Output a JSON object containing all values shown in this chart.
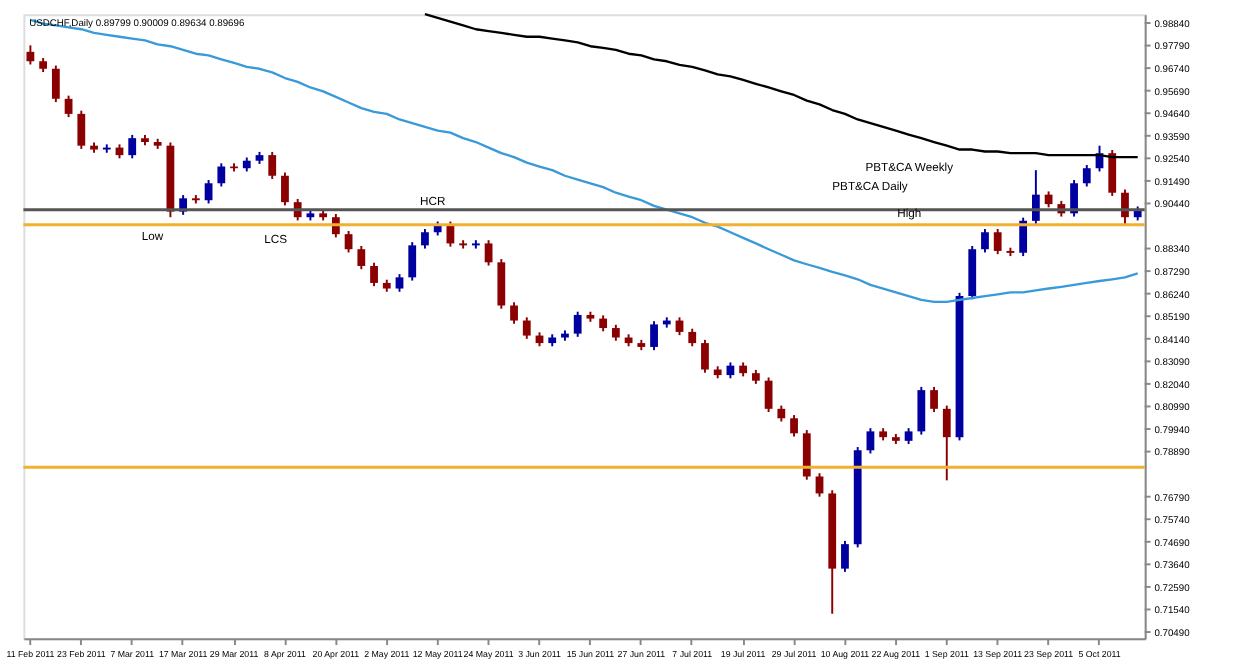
{
  "chart_data": {
    "type": "candlestick",
    "title": "USDCHF,Daily  0.89799 0.90009 0.89634 0.89696",
    "categories": [
      "11 Feb 2011",
      null,
      null,
      null,
      "23 Feb 2011",
      null,
      null,
      null,
      "7 Mar 2011",
      null,
      null,
      null,
      "17 Mar 2011",
      null,
      null,
      null,
      "29 Mar 2011",
      null,
      null,
      null,
      "8 Apr 2011",
      null,
      null,
      null,
      "20 Apr 2011",
      null,
      null,
      null,
      "2 May 2011",
      null,
      null,
      null,
      "12 May 2011",
      null,
      null,
      null,
      "24 May 2011",
      null,
      null,
      null,
      "3 Jun 2011",
      null,
      null,
      null,
      "15 Jun 2011",
      null,
      null,
      null,
      "27 Jun 2011",
      null,
      null,
      null,
      "7 Jul 2011",
      null,
      null,
      null,
      "19 Jul 2011",
      null,
      null,
      null,
      "29 Jul 2011",
      null,
      null,
      null,
      "10 Aug 2011",
      null,
      null,
      null,
      "22 Aug 2011",
      null,
      null,
      null,
      "1 Sep 2011",
      null,
      null,
      null,
      "13 Sep 2011",
      null,
      null,
      null,
      "23 Sep 2011",
      null,
      null,
      null,
      "5 Oct 2011",
      null,
      null,
      null
    ],
    "ohlc": [
      [
        0.975,
        0.978,
        0.9691,
        0.9706
      ],
      [
        0.9706,
        0.9721,
        0.9656,
        0.9671
      ],
      [
        0.9671,
        0.9686,
        0.9516,
        0.9531
      ],
      [
        0.9531,
        0.9546,
        0.9446,
        0.9461
      ],
      [
        0.9461,
        0.9476,
        0.9298,
        0.9313
      ],
      [
        0.9313,
        0.9328,
        0.928,
        0.9295
      ],
      [
        0.9295,
        0.9319,
        0.928,
        0.9304
      ],
      [
        0.9304,
        0.9319,
        0.9254,
        0.9269
      ],
      [
        0.9269,
        0.9363,
        0.9254,
        0.9348
      ],
      [
        0.9348,
        0.9363,
        0.9315,
        0.933
      ],
      [
        0.933,
        0.9345,
        0.9298,
        0.9313
      ],
      [
        0.9313,
        0.9328,
        0.898,
        0.9006
      ],
      [
        0.9006,
        0.9083,
        0.8991,
        0.9068
      ],
      [
        0.9068,
        0.9083,
        0.9044,
        0.9059
      ],
      [
        0.9059,
        0.9153,
        0.9044,
        0.9138
      ],
      [
        0.9138,
        0.9231,
        0.9123,
        0.9216
      ],
      [
        0.9216,
        0.9231,
        0.9193,
        0.9208
      ],
      [
        0.9208,
        0.9258,
        0.9193,
        0.9243
      ],
      [
        0.9243,
        0.9284,
        0.9228,
        0.9269
      ],
      [
        0.9269,
        0.9284,
        0.9158,
        0.9173
      ],
      [
        0.9173,
        0.9188,
        0.9035,
        0.905
      ],
      [
        0.905,
        0.9065,
        0.8965,
        0.898
      ],
      [
        0.898,
        0.9013,
        0.8965,
        0.8998
      ],
      [
        0.8998,
        0.9013,
        0.8965,
        0.898
      ],
      [
        0.898,
        0.8995,
        0.8886,
        0.8901
      ],
      [
        0.8901,
        0.8916,
        0.8816,
        0.8831
      ],
      [
        0.8831,
        0.8846,
        0.8738,
        0.8753
      ],
      [
        0.8753,
        0.8768,
        0.8659,
        0.8674
      ],
      [
        0.8674,
        0.8689,
        0.8633,
        0.8648
      ],
      [
        0.8648,
        0.8715,
        0.8633,
        0.87
      ],
      [
        0.87,
        0.8864,
        0.8685,
        0.8849
      ],
      [
        0.8849,
        0.8925,
        0.8834,
        0.891
      ],
      [
        0.891,
        0.896,
        0.8895,
        0.8945
      ],
      [
        0.8945,
        0.896,
        0.8843,
        0.8858
      ],
      [
        0.8858,
        0.8873,
        0.8834,
        0.8849
      ],
      [
        0.8849,
        0.8873,
        0.8834,
        0.8858
      ],
      [
        0.8858,
        0.8873,
        0.8755,
        0.877
      ],
      [
        0.877,
        0.8785,
        0.8554,
        0.8569
      ],
      [
        0.8569,
        0.8584,
        0.8484,
        0.8499
      ],
      [
        0.8499,
        0.8514,
        0.8414,
        0.8429
      ],
      [
        0.8429,
        0.8444,
        0.8379,
        0.8394
      ],
      [
        0.8394,
        0.8435,
        0.8379,
        0.842
      ],
      [
        0.842,
        0.8453,
        0.8405,
        0.8438
      ],
      [
        0.8438,
        0.854,
        0.8423,
        0.8525
      ],
      [
        0.8525,
        0.854,
        0.8493,
        0.8508
      ],
      [
        0.8508,
        0.8523,
        0.8449,
        0.8464
      ],
      [
        0.8464,
        0.8479,
        0.8405,
        0.842
      ],
      [
        0.842,
        0.8435,
        0.8379,
        0.8394
      ],
      [
        0.8394,
        0.8409,
        0.8361,
        0.8376
      ],
      [
        0.8376,
        0.8496,
        0.8361,
        0.8481
      ],
      [
        0.8481,
        0.8514,
        0.8466,
        0.8499
      ],
      [
        0.8499,
        0.8514,
        0.8431,
        0.8446
      ],
      [
        0.8446,
        0.8461,
        0.8379,
        0.8394
      ],
      [
        0.8394,
        0.8409,
        0.8256,
        0.8271
      ],
      [
        0.8271,
        0.8286,
        0.823,
        0.8245
      ],
      [
        0.8245,
        0.8304,
        0.823,
        0.8289
      ],
      [
        0.8289,
        0.8304,
        0.8239,
        0.8254
      ],
      [
        0.8254,
        0.8269,
        0.8204,
        0.8219
      ],
      [
        0.8219,
        0.8234,
        0.8073,
        0.8088
      ],
      [
        0.8088,
        0.8103,
        0.8029,
        0.8044
      ],
      [
        0.8044,
        0.8059,
        0.7959,
        0.7974
      ],
      [
        0.7974,
        0.7989,
        0.7758,
        0.7773
      ],
      [
        0.7773,
        0.7788,
        0.7679,
        0.7694
      ],
      [
        0.7694,
        0.7709,
        0.7134,
        0.7344
      ],
      [
        0.7344,
        0.7473,
        0.7329,
        0.7458
      ],
      [
        0.7458,
        0.791,
        0.7443,
        0.7895
      ],
      [
        0.7895,
        0.7998,
        0.788,
        0.7983
      ],
      [
        0.7983,
        0.7998,
        0.7941,
        0.7956
      ],
      [
        0.7956,
        0.7971,
        0.7924,
        0.7939
      ],
      [
        0.7939,
        0.7998,
        0.7924,
        0.7983
      ],
      [
        0.7983,
        0.819,
        0.7968,
        0.8175
      ],
      [
        0.8175,
        0.819,
        0.8073,
        0.8088
      ],
      [
        0.8088,
        0.8103,
        0.7755,
        0.7956
      ],
      [
        0.7956,
        0.8628,
        0.7941,
        0.8613
      ],
      [
        0.8613,
        0.8846,
        0.8598,
        0.8831
      ],
      [
        0.8831,
        0.8925,
        0.8816,
        0.891
      ],
      [
        0.891,
        0.8925,
        0.8808,
        0.8823
      ],
      [
        0.8823,
        0.8838,
        0.8799,
        0.8814
      ],
      [
        0.8814,
        0.8978,
        0.8799,
        0.8963
      ],
      [
        0.8963,
        0.9199,
        0.8948,
        0.9085
      ],
      [
        0.9085,
        0.91,
        0.9026,
        0.9041
      ],
      [
        0.9041,
        0.9056,
        0.8983,
        0.8998
      ],
      [
        0.8998,
        0.9153,
        0.8983,
        0.9138
      ],
      [
        0.9138,
        0.9223,
        0.9123,
        0.9208
      ],
      [
        0.9208,
        0.9313,
        0.9193,
        0.9278
      ],
      [
        0.9278,
        0.9293,
        0.9079,
        0.9094
      ],
      [
        0.9094,
        0.9109,
        0.8945,
        0.898
      ],
      [
        0.898,
        0.903,
        0.8965,
        0.9015
      ]
    ],
    "colors": [
      "#8b0000",
      "#8b0000",
      "#8b0000",
      "#8b0000",
      "#8b0000",
      "#8b0000",
      "#0000a0",
      "#8b0000",
      "#0000a0",
      "#8b0000",
      "#8b0000",
      "#8b0000",
      "#0000a0",
      "#8b0000",
      "#0000a0",
      "#0000a0",
      "#8b0000",
      "#0000a0",
      "#0000a0",
      "#8b0000",
      "#8b0000",
      "#8b0000",
      "#0000a0",
      "#8b0000",
      "#8b0000",
      "#8b0000",
      "#8b0000",
      "#8b0000",
      "#8b0000",
      "#0000a0",
      "#0000a0",
      "#0000a0",
      "#0000a0",
      "#8b0000",
      "#8b0000",
      "#0000a0",
      "#8b0000",
      "#8b0000",
      "#8b0000",
      "#8b0000",
      "#8b0000",
      "#0000a0",
      "#0000a0",
      "#0000a0",
      "#8b0000",
      "#8b0000",
      "#8b0000",
      "#8b0000",
      "#8b0000",
      "#0000a0",
      "#0000a0",
      "#8b0000",
      "#8b0000",
      "#8b0000",
      "#8b0000",
      "#0000a0",
      "#8b0000",
      "#8b0000",
      "#8b0000",
      "#8b0000",
      "#8b0000",
      "#8b0000",
      "#8b0000",
      "#8b0000",
      "#0000a0",
      "#0000a0",
      "#0000a0",
      "#8b0000",
      "#8b0000",
      "#0000a0",
      "#0000a0",
      "#8b0000",
      "#8b0000",
      "#0000a0",
      "#0000a0",
      "#0000a0",
      "#8b0000",
      "#8b0000",
      "#0000a0",
      "#0000a0",
      "#8b0000",
      "#8b0000",
      "#0000a0",
      "#0000a0",
      "#0000a0",
      "#8b0000",
      "#8b0000",
      "#0000a0"
    ],
    "series": [
      {
        "type": "line",
        "color": "#3a9ad9",
        "values": [
          0.9899,
          0.9881,
          0.9873,
          0.9864,
          0.9855,
          0.9838,
          0.9829,
          0.982,
          0.9811,
          0.9803,
          0.9785,
          0.9776,
          0.9759,
          0.9741,
          0.9733,
          0.9715,
          0.9698,
          0.968,
          0.9671,
          0.9654,
          0.9628,
          0.961,
          0.9584,
          0.9566,
          0.954,
          0.9514,
          0.9488,
          0.947,
          0.9461,
          0.9435,
          0.9418,
          0.94,
          0.9383,
          0.9374,
          0.9348,
          0.933,
          0.9304,
          0.9278,
          0.926,
          0.9234,
          0.9216,
          0.9199,
          0.9173,
          0.9155,
          0.9138,
          0.912,
          0.9094,
          0.9076,
          0.9059,
          0.9033,
          0.9015,
          0.8998,
          0.898,
          0.8954,
          0.8936,
          0.891,
          0.8884,
          0.8858,
          0.8831,
          0.8805,
          0.8779,
          0.8761,
          0.8744,
          0.8726,
          0.8709,
          0.8691,
          0.8665,
          0.8648,
          0.863,
          0.8613,
          0.8595,
          0.8586,
          0.8586,
          0.8595,
          0.8604,
          0.8613,
          0.8621,
          0.863,
          0.863,
          0.8639,
          0.8648,
          0.8656,
          0.8665,
          0.8674,
          0.8683,
          0.8691,
          0.87,
          0.8718
        ]
      },
      {
        "type": "line",
        "color": "#000000",
        "values": [
          null,
          null,
          null,
          null,
          null,
          null,
          null,
          null,
          null,
          null,
          null,
          null,
          null,
          null,
          null,
          null,
          null,
          null,
          null,
          null,
          null,
          null,
          null,
          null,
          null,
          null,
          null,
          null,
          null,
          null,
          null,
          0.9925,
          0.9908,
          0.989,
          0.9873,
          0.9855,
          0.9846,
          0.9838,
          0.9829,
          0.982,
          0.982,
          0.9811,
          0.9803,
          0.9794,
          0.9776,
          0.9768,
          0.9759,
          0.9741,
          0.9733,
          0.9715,
          0.9706,
          0.9689,
          0.968,
          0.9663,
          0.9645,
          0.9636,
          0.9619,
          0.9601,
          0.9584,
          0.9566,
          0.9549,
          0.9523,
          0.9505,
          0.9479,
          0.9461,
          0.9435,
          0.9418,
          0.94,
          0.9383,
          0.9365,
          0.9348,
          0.933,
          0.9313,
          0.9295,
          0.9295,
          0.9286,
          0.9286,
          0.9278,
          0.9278,
          0.9278,
          0.9269,
          0.9269,
          0.9269,
          0.9269,
          0.9269,
          0.926,
          0.926,
          0.926
        ]
      }
    ],
    "ylim": [
      0.702,
      0.9925
    ],
    "yticks": [
      {
        "value": 0.9884,
        "label": "0.98840"
      },
      {
        "value": 0.9779,
        "label": "0.97790"
      },
      {
        "value": 0.9674,
        "label": "0.96740"
      },
      {
        "value": 0.9569,
        "label": "0.95690"
      },
      {
        "value": 0.9464,
        "label": "0.94640"
      },
      {
        "value": 0.9359,
        "label": "0.93590"
      },
      {
        "value": 0.9254,
        "label": "0.92540"
      },
      {
        "value": 0.9149,
        "label": "0.91490"
      },
      {
        "value": 0.9044,
        "label": "0.90440"
      },
      {
        "value": 0.8834,
        "label": "0.88340"
      },
      {
        "value": 0.8729,
        "label": "0.87290"
      },
      {
        "value": 0.8624,
        "label": "0.86240"
      },
      {
        "value": 0.8519,
        "label": "0.85190"
      },
      {
        "value": 0.8414,
        "label": "0.84140"
      },
      {
        "value": 0.8309,
        "label": "0.83090"
      },
      {
        "value": 0.8204,
        "label": "0.82040"
      },
      {
        "value": 0.8099,
        "label": "0.80990"
      },
      {
        "value": 0.7994,
        "label": "0.79940"
      },
      {
        "value": 0.7889,
        "label": "0.78890"
      },
      {
        "value": 0.7679,
        "label": "0.76790"
      },
      {
        "value": 0.7574,
        "label": "0.75740"
      },
      {
        "value": 0.7469,
        "label": "0.74690"
      },
      {
        "value": 0.7364,
        "label": "0.73640"
      },
      {
        "value": 0.7259,
        "label": "0.72590"
      },
      {
        "value": 0.7154,
        "label": "0.71540"
      },
      {
        "value": 0.7049,
        "label": "0.70490"
      }
    ],
    "ref_lines": [
      {
        "axis": "y",
        "value": 0.9015,
        "color": "#555555"
      },
      {
        "axis": "y",
        "value": 0.8945,
        "color": "#f0b030"
      },
      {
        "axis": "y",
        "value": 0.7816,
        "color": "#f0b030"
      }
    ],
    "annotations": [
      "Low",
      "LCS",
      "HCR",
      "High",
      "PBT&CA Daily",
      "PBT&CA Weekly"
    ],
    "grid": false
  }
}
